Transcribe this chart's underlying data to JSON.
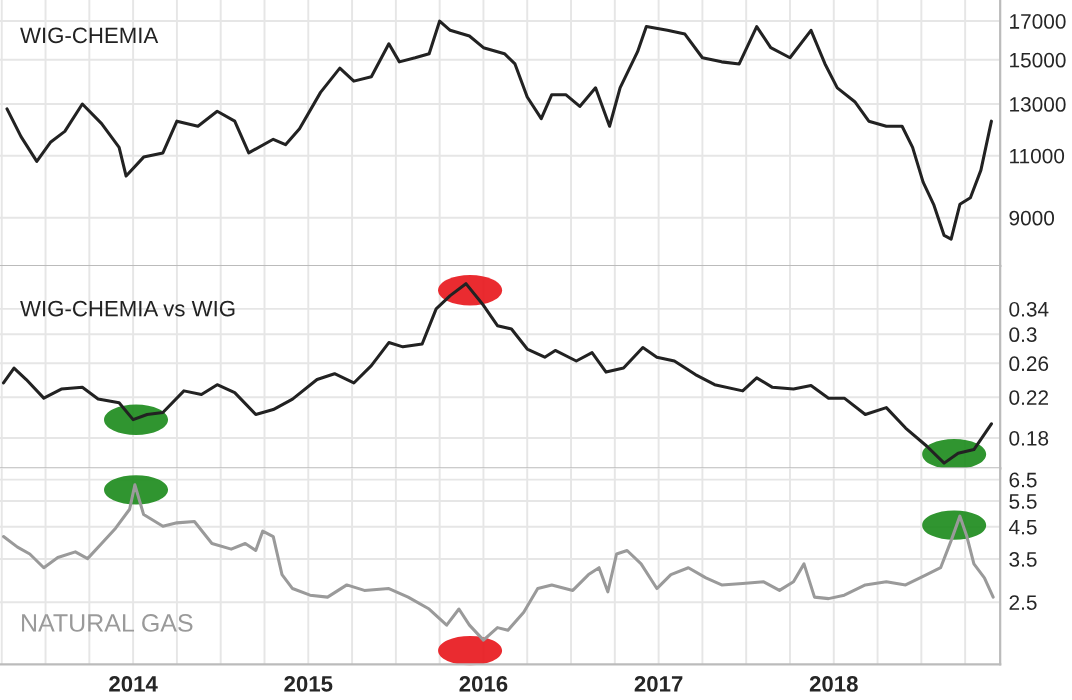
{
  "chart_data": [
    {
      "type": "line",
      "title": "WIG-CHEMIA",
      "log": true,
      "grid": true,
      "tick_labels": "y",
      "xlim": [
        2013.24,
        2018.95
      ],
      "xticks": [
        {
          "value": 2013.25,
          "label": null
        },
        {
          "value": 2013.5,
          "label": null
        },
        {
          "value": 2013.75,
          "label": null
        },
        {
          "value": 2014,
          "label": null
        },
        {
          "value": 2014.25,
          "label": null
        },
        {
          "value": 2014.5,
          "label": null
        },
        {
          "value": 2014.75,
          "label": null
        },
        {
          "value": 2015,
          "label": null
        },
        {
          "value": 2015.25,
          "label": null
        },
        {
          "value": 2015.5,
          "label": null
        },
        {
          "value": 2015.75,
          "label": null
        },
        {
          "value": 2016,
          "label": null
        },
        {
          "value": 2016.25,
          "label": null
        },
        {
          "value": 2016.5,
          "label": null
        },
        {
          "value": 2016.75,
          "label": null
        },
        {
          "value": 2017,
          "label": null
        },
        {
          "value": 2017.25,
          "label": null
        },
        {
          "value": 2017.5,
          "label": null
        },
        {
          "value": 2017.75,
          "label": null
        },
        {
          "value": 2018,
          "label": null
        },
        {
          "value": 2018.25,
          "label": null
        },
        {
          "value": 2018.5,
          "label": null
        },
        {
          "value": 2018.75,
          "label": null
        }
      ],
      "ylim": [
        7700,
        18200
      ],
      "yticks": [
        9000,
        11000,
        13000,
        15000,
        17000
      ],
      "series": [
        {
          "color": "#222222",
          "x": [
            2013.28,
            2013.36,
            2013.45,
            2013.53,
            2013.61,
            2013.71,
            2013.82,
            2013.92,
            2013.96,
            2014.06,
            2014.17,
            2014.25,
            2014.37,
            2014.48,
            2014.58,
            2014.66,
            2014.8,
            2014.87,
            2014.95,
            2015.07,
            2015.18,
            2015.26,
            2015.36,
            2015.46,
            2015.52,
            2015.61,
            2015.69,
            2015.75,
            2015.81,
            2015.92,
            2016.0,
            2016.12,
            2016.18,
            2016.25,
            2016.33,
            2016.39,
            2016.47,
            2016.55,
            2016.64,
            2016.72,
            2016.78,
            2016.88,
            2016.93,
            2017.05,
            2017.15,
            2017.25,
            2017.36,
            2017.46,
            2017.56,
            2017.64,
            2017.75,
            2017.87,
            2017.95,
            2018.02,
            2018.12,
            2018.2,
            2018.3,
            2018.39,
            2018.45,
            2018.51,
            2018.57,
            2018.63,
            2018.67,
            2018.72,
            2018.78,
            2018.84,
            2018.9
          ],
          "values": [
            12800,
            11700,
            10800,
            11500,
            11900,
            13000,
            12200,
            11300,
            10300,
            10950,
            11100,
            12300,
            12100,
            12700,
            12300,
            11100,
            11600,
            11400,
            12000,
            13500,
            14600,
            14000,
            14200,
            15800,
            14900,
            15100,
            15300,
            17000,
            16500,
            16200,
            15600,
            15300,
            14800,
            13300,
            12400,
            13400,
            13400,
            12900,
            13700,
            12100,
            13700,
            15400,
            16700,
            16500,
            16300,
            15100,
            14900,
            14800,
            16700,
            15600,
            15100,
            16500,
            14800,
            13700,
            13100,
            12300,
            12100,
            12100,
            11300,
            10100,
            9400,
            8500,
            8400,
            9400,
            9600,
            10500,
            12300
          ]
        }
      ]
    },
    {
      "type": "line",
      "title": "WIG-CHEMIA vs WIG",
      "log": true,
      "grid": true,
      "tick_labels": "y",
      "xlim": [
        2013.24,
        2018.95
      ],
      "xticks": [
        {
          "value": 2013.25,
          "label": null
        },
        {
          "value": 2013.5,
          "label": null
        },
        {
          "value": 2013.75,
          "label": null
        },
        {
          "value": 2014,
          "label": null
        },
        {
          "value": 2014.25,
          "label": null
        },
        {
          "value": 2014.5,
          "label": null
        },
        {
          "value": 2014.75,
          "label": null
        },
        {
          "value": 2015,
          "label": null
        },
        {
          "value": 2015.25,
          "label": null
        },
        {
          "value": 2015.5,
          "label": null
        },
        {
          "value": 2015.75,
          "label": null
        },
        {
          "value": 2016,
          "label": null
        },
        {
          "value": 2016.25,
          "label": null
        },
        {
          "value": 2016.5,
          "label": null
        },
        {
          "value": 2016.75,
          "label": null
        },
        {
          "value": 2017,
          "label": null
        },
        {
          "value": 2017.25,
          "label": null
        },
        {
          "value": 2017.5,
          "label": null
        },
        {
          "value": 2017.75,
          "label": null
        },
        {
          "value": 2018,
          "label": null
        },
        {
          "value": 2018.25,
          "label": null
        },
        {
          "value": 2018.5,
          "label": null
        },
        {
          "value": 2018.75,
          "label": null
        }
      ],
      "ylim": [
        0.155,
        0.42
      ],
      "yticks": [
        0.18,
        0.22,
        0.26,
        0.3,
        0.34
      ],
      "series": [
        {
          "color": "#222222",
          "x": [
            2013.26,
            2013.32,
            2013.39,
            2013.49,
            2013.59,
            2013.71,
            2013.8,
            2013.92,
            2014.0,
            2014.08,
            2014.17,
            2014.29,
            2014.39,
            2014.48,
            2014.58,
            2014.7,
            2014.8,
            2014.91,
            2015.05,
            2015.15,
            2015.26,
            2015.36,
            2015.46,
            2015.54,
            2015.65,
            2015.73,
            2015.81,
            2015.9,
            2016.0,
            2016.08,
            2016.16,
            2016.25,
            2016.35,
            2016.41,
            2016.53,
            2016.62,
            2016.7,
            2016.8,
            2016.91,
            2016.99,
            2017.09,
            2017.21,
            2017.32,
            2017.48,
            2017.56,
            2017.65,
            2017.77,
            2017.87,
            2017.97,
            2018.06,
            2018.18,
            2018.3,
            2018.41,
            2018.53,
            2018.63,
            2018.71,
            2018.8,
            2018.9
          ],
          "values": [
            0.236,
            0.254,
            0.24,
            0.219,
            0.229,
            0.231,
            0.218,
            0.214,
            0.197,
            0.202,
            0.204,
            0.227,
            0.223,
            0.234,
            0.225,
            0.202,
            0.207,
            0.218,
            0.24,
            0.247,
            0.236,
            0.257,
            0.288,
            0.282,
            0.286,
            0.34,
            0.363,
            0.385,
            0.346,
            0.313,
            0.308,
            0.279,
            0.268,
            0.277,
            0.263,
            0.274,
            0.249,
            0.254,
            0.281,
            0.268,
            0.263,
            0.246,
            0.234,
            0.227,
            0.242,
            0.231,
            0.229,
            0.233,
            0.219,
            0.219,
            0.202,
            0.209,
            0.189,
            0.173,
            0.159,
            0.167,
            0.17,
            0.193
          ]
        }
      ]
    },
    {
      "type": "line",
      "title": "NATURAL GAS",
      "log": true,
      "grid": true,
      "xlim": [
        2013.24,
        2018.95
      ],
      "xticks": [
        {
          "value": 2013.25,
          "label": null
        },
        {
          "value": 2013.5,
          "label": null
        },
        {
          "value": 2013.75,
          "label": null
        },
        {
          "value": 2014,
          "label": "2014"
        },
        {
          "value": 2014.25,
          "label": null
        },
        {
          "value": 2014.5,
          "label": null
        },
        {
          "value": 2014.75,
          "label": null
        },
        {
          "value": 2015,
          "label": "2015"
        },
        {
          "value": 2015.25,
          "label": null
        },
        {
          "value": 2015.5,
          "label": null
        },
        {
          "value": 2015.75,
          "label": null
        },
        {
          "value": 2016,
          "label": "2016"
        },
        {
          "value": 2016.25,
          "label": null
        },
        {
          "value": 2016.5,
          "label": null
        },
        {
          "value": 2016.75,
          "label": null
        },
        {
          "value": 2017,
          "label": "2017"
        },
        {
          "value": 2017.25,
          "label": null
        },
        {
          "value": 2017.5,
          "label": null
        },
        {
          "value": 2017.75,
          "label": null
        },
        {
          "value": 2018,
          "label": "2018"
        },
        {
          "value": 2018.25,
          "label": null
        },
        {
          "value": 2018.5,
          "label": null
        },
        {
          "value": 2018.75,
          "label": null
        }
      ],
      "ylim": [
        1.54,
        7.1
      ],
      "yticks": [
        2.5,
        3.5,
        4.5,
        5.5,
        6.5
      ],
      "series": [
        {
          "color": "#9a9a9a",
          "x": [
            2013.26,
            2013.34,
            2013.41,
            2013.49,
            2013.57,
            2013.67,
            2013.74,
            2013.82,
            2013.9,
            2013.98,
            2014.01,
            2014.06,
            2014.17,
            2014.25,
            2014.35,
            2014.45,
            2014.56,
            2014.64,
            2014.7,
            2014.74,
            2014.8,
            2014.85,
            2014.91,
            2015.01,
            2015.11,
            2015.22,
            2015.32,
            2015.46,
            2015.57,
            2015.69,
            2015.79,
            2015.86,
            2015.92,
            2016.0,
            2016.08,
            2016.14,
            2016.23,
            2016.31,
            2016.39,
            2016.51,
            2016.6,
            2016.66,
            2016.71,
            2016.76,
            2016.82,
            2016.9,
            2016.99,
            2017.07,
            2017.17,
            2017.27,
            2017.36,
            2017.48,
            2017.6,
            2017.69,
            2017.77,
            2017.83,
            2017.89,
            2017.97,
            2018.06,
            2018.18,
            2018.3,
            2018.41,
            2018.53,
            2018.61,
            2018.67,
            2018.72,
            2018.76,
            2018.8,
            2018.86,
            2018.91
          ],
          "values": [
            4.17,
            3.84,
            3.64,
            3.27,
            3.54,
            3.7,
            3.51,
            3.95,
            4.45,
            5.16,
            6.24,
            4.95,
            4.52,
            4.64,
            4.69,
            3.95,
            3.78,
            3.95,
            3.74,
            4.35,
            4.17,
            3.1,
            2.78,
            2.64,
            2.6,
            2.86,
            2.74,
            2.78,
            2.6,
            2.37,
            2.09,
            2.37,
            2.09,
            1.86,
            2.05,
            2.01,
            2.31,
            2.78,
            2.86,
            2.74,
            3.1,
            3.27,
            2.71,
            3.64,
            3.74,
            3.37,
            2.78,
            3.1,
            3.27,
            3.02,
            2.86,
            2.89,
            2.93,
            2.74,
            2.93,
            3.37,
            2.6,
            2.57,
            2.64,
            2.86,
            2.93,
            2.86,
            3.1,
            3.27,
            4.04,
            4.89,
            4.17,
            3.37,
            3.02,
            2.6
          ]
        }
      ]
    }
  ]
}
